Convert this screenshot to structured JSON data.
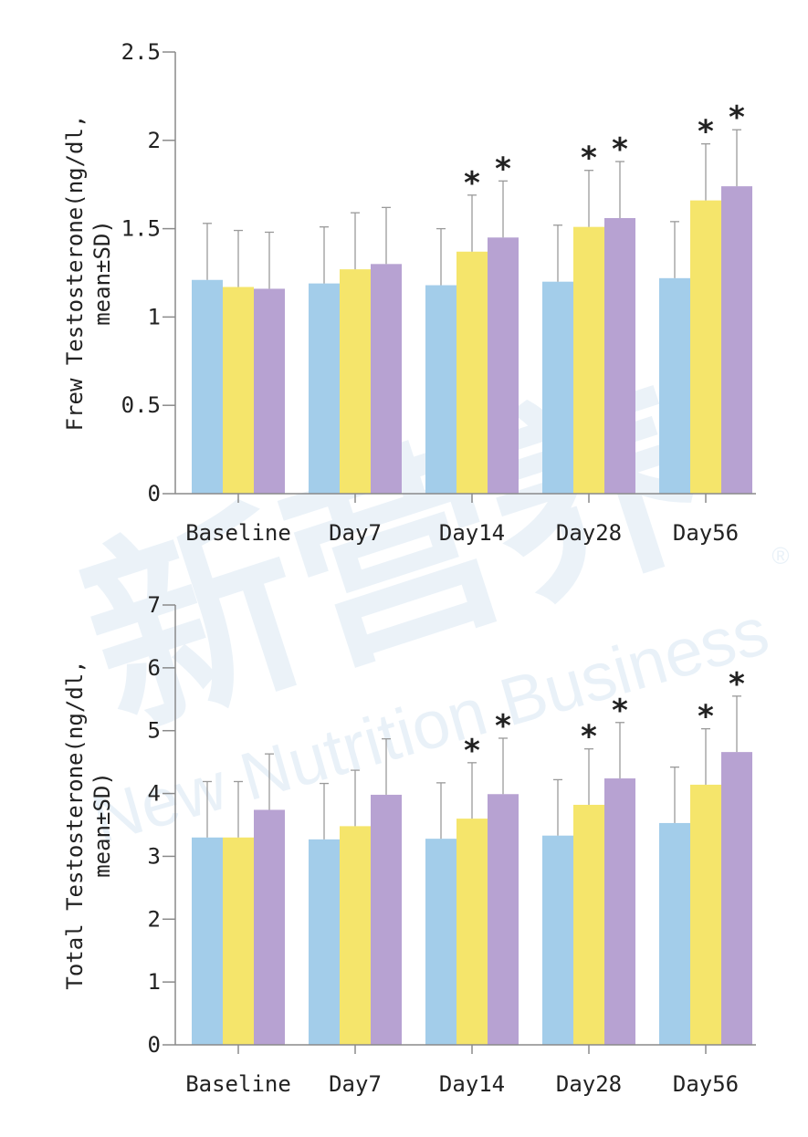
{
  "watermark": {
    "cn_text": "新营养",
    "en_text": "New Nutrition Business",
    "registered_mark": "®",
    "color": "#dbe9f4"
  },
  "chart_data": [
    {
      "type": "bar",
      "ylabel_line1": "Frew Testosterone(ng/dl,",
      "ylabel_line2": "mean±SD)",
      "categories": [
        "Baseline",
        "Day7",
        "Day14",
        "Day28",
        "Day56"
      ],
      "ylim": [
        0,
        2.5
      ],
      "yticks": [
        0,
        0.5,
        1,
        1.5,
        2,
        2.5
      ],
      "ytick_labels": [
        "0",
        "0.5",
        "1",
        "1.5",
        "2",
        "2.5"
      ],
      "series": [
        {
          "color": "#a3cdea",
          "values": [
            1.21,
            1.19,
            1.18,
            1.2,
            1.22
          ],
          "error": [
            0.32,
            0.32,
            0.32,
            0.32,
            0.32
          ],
          "significant": [
            false,
            false,
            false,
            false,
            false
          ]
        },
        {
          "color": "#f5e56b",
          "values": [
            1.17,
            1.27,
            1.37,
            1.51,
            1.66
          ],
          "error": [
            0.32,
            0.32,
            0.32,
            0.32,
            0.32
          ],
          "significant": [
            false,
            false,
            true,
            true,
            true
          ]
        },
        {
          "color": "#b7a2d2",
          "values": [
            1.16,
            1.3,
            1.45,
            1.56,
            1.74
          ],
          "error": [
            0.32,
            0.32,
            0.32,
            0.32,
            0.32
          ],
          "significant": [
            false,
            false,
            true,
            true,
            true
          ]
        }
      ],
      "significance_label": "*"
    },
    {
      "type": "bar",
      "ylabel_line1": "Total Testosterone(ng/dl,",
      "ylabel_line2": "mean±SD)",
      "categories": [
        "Baseline",
        "Day7",
        "Day14",
        "Day28",
        "Day56"
      ],
      "ylim": [
        0,
        7
      ],
      "yticks": [
        0,
        1,
        2,
        3,
        4,
        5,
        6,
        7
      ],
      "ytick_labels": [
        "0",
        "1",
        "2",
        "3",
        "4",
        "5",
        "6",
        "7"
      ],
      "series": [
        {
          "color": "#a3cdea",
          "values": [
            3.3,
            3.27,
            3.28,
            3.33,
            3.53
          ],
          "error": [
            0.89,
            0.89,
            0.89,
            0.89,
            0.89
          ],
          "significant": [
            false,
            false,
            false,
            false,
            false
          ]
        },
        {
          "color": "#f5e56b",
          "values": [
            3.3,
            3.48,
            3.6,
            3.82,
            4.14
          ],
          "error": [
            0.89,
            0.89,
            0.89,
            0.89,
            0.89
          ],
          "significant": [
            false,
            false,
            true,
            true,
            true
          ]
        },
        {
          "color": "#b7a2d2",
          "values": [
            3.74,
            3.98,
            3.99,
            4.24,
            4.66
          ],
          "error": [
            0.89,
            0.89,
            0.89,
            0.89,
            0.89
          ],
          "significant": [
            false,
            false,
            true,
            true,
            true
          ]
        }
      ],
      "significance_label": "*"
    }
  ]
}
